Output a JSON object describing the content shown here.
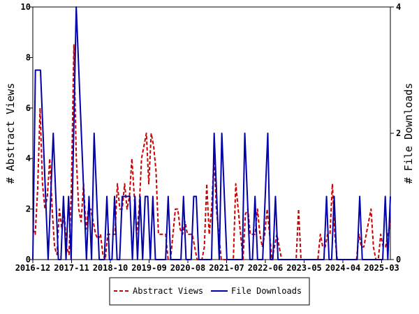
{
  "chart_data": {
    "type": "line",
    "y_left_label": "# Abstract Views",
    "y_right_label": "# File Downloads",
    "y_left_ticks": [
      0,
      2,
      4,
      6,
      8,
      10
    ],
    "y_right_ticks": [
      0,
      2,
      4
    ],
    "y_left_range": [
      0,
      10
    ],
    "y_right_range": [
      0,
      4
    ],
    "x_tick_labels": [
      "2016-12",
      "2017-11",
      "2018-10",
      "2019-09",
      "2020-08",
      "2021-07",
      "2022-06",
      "2023-05",
      "2024-04",
      "2025-03"
    ],
    "grid": false,
    "legend_position": "bottom",
    "colors": {
      "abstract_views": "#cc0000",
      "file_downloads": "#0000aa"
    },
    "series": [
      {
        "name": "Abstract Views",
        "axis": "left",
        "style": "dashed",
        "values": [
          1.2,
          1,
          2.8,
          6,
          3,
          2,
          2.5,
          4,
          2,
          0.5,
          0.2,
          2,
          1.2,
          1.8,
          0.5,
          0.2,
          3,
          8.5,
          4,
          2,
          1.5,
          3,
          1.2,
          2,
          2,
          1.5,
          1,
          0.8,
          1,
          0.2,
          0,
          1,
          1,
          1,
          1,
          3,
          2,
          2,
          3,
          2,
          2.5,
          4,
          2.5,
          1,
          2,
          4,
          4.5,
          5,
          3,
          5,
          4.5,
          3.5,
          1,
          1,
          1,
          1,
          0,
          0,
          1,
          2,
          2,
          1.2,
          1,
          1.5,
          1,
          1,
          1,
          0.5,
          0,
          0,
          0,
          0.5,
          3,
          1,
          2,
          4,
          2,
          1,
          0,
          0,
          0,
          0,
          0,
          0,
          3,
          2,
          1,
          0,
          1.8,
          2,
          1,
          1,
          1,
          2,
          1,
          0.5,
          1,
          2,
          1,
          0,
          0.5,
          1,
          0.5,
          0,
          0,
          0,
          0,
          0,
          0,
          0,
          2,
          0,
          0,
          0,
          0,
          0,
          0,
          0,
          0,
          1,
          0.5,
          0.5,
          1,
          1,
          3,
          1,
          0,
          0,
          0,
          0,
          0,
          0,
          0,
          0,
          0,
          1,
          0.5,
          0.5,
          1,
          1.5,
          2,
          0.5,
          0,
          0,
          1,
          0.5,
          0.5,
          1,
          1.5
        ],
        "values_note": "sampled visually at regular monthly intervals"
      },
      {
        "name": "File Downloads",
        "axis": "right",
        "style": "solid",
        "values": [
          0,
          3,
          3,
          3,
          2,
          1,
          0,
          1,
          2,
          1,
          0,
          0,
          1,
          0,
          1,
          0,
          2,
          4,
          3,
          2,
          1,
          0,
          1,
          0,
          2,
          1,
          0,
          0,
          0,
          1,
          0,
          0,
          1,
          0,
          0,
          1,
          1,
          1,
          1,
          0,
          1,
          0,
          1,
          0,
          1,
          1,
          0,
          1,
          0,
          0,
          0,
          0,
          0,
          1,
          0,
          0,
          0,
          0,
          0,
          1,
          0,
          0,
          0,
          1,
          1,
          0,
          0,
          0,
          0,
          0,
          0,
          2,
          1,
          0,
          2,
          1,
          0,
          0,
          0,
          0,
          0,
          0,
          0,
          2,
          1,
          0,
          0,
          1,
          0,
          0,
          0,
          1,
          2,
          0,
          0,
          1,
          0,
          0,
          0,
          0,
          0,
          0,
          0,
          0,
          0,
          0,
          0,
          0,
          0,
          0,
          0,
          0,
          0,
          0,
          0,
          1,
          0,
          0,
          1,
          0,
          0,
          0,
          0,
          0,
          0,
          0,
          0,
          0,
          1,
          0,
          0,
          0,
          0,
          0,
          0,
          0,
          0,
          0,
          1,
          0,
          1
        ]
      }
    ]
  }
}
